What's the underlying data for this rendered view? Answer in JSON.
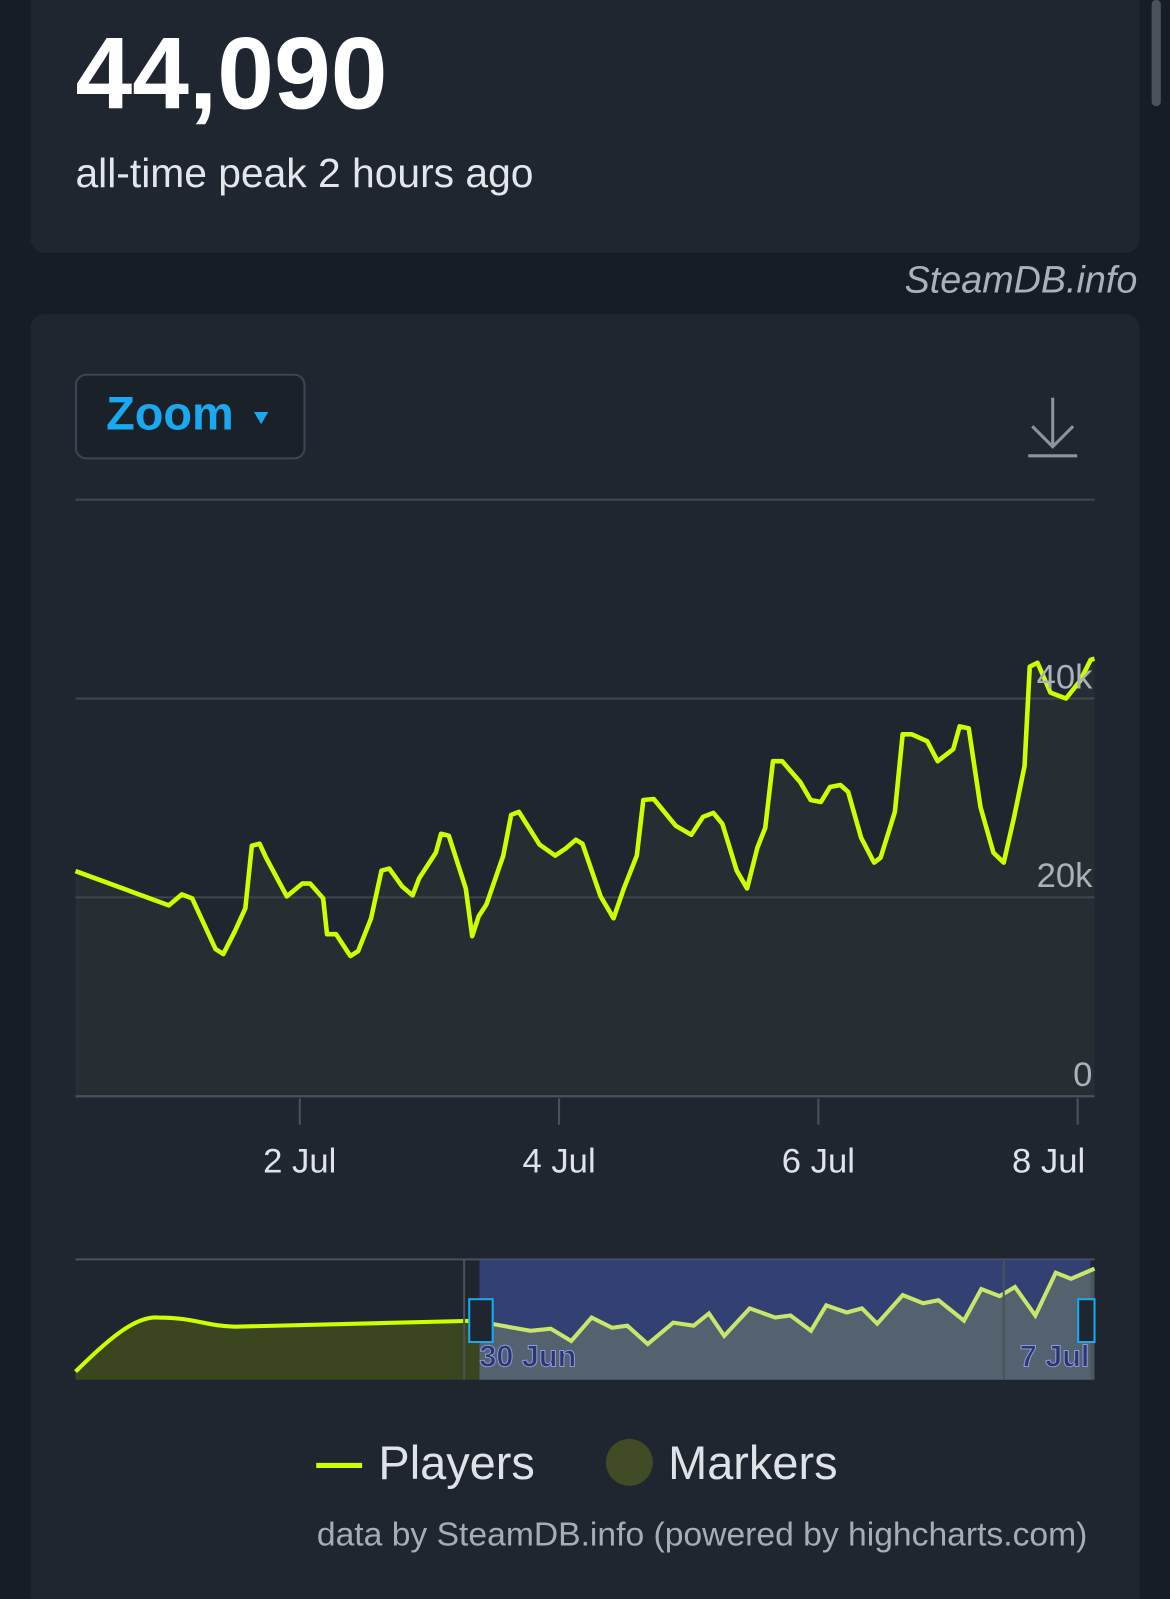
{
  "header": {
    "peak": "44,090",
    "subtitle": "all-time peak 2 hours ago"
  },
  "watermark": "SteamDB.info",
  "zoom_button": "Zoom",
  "navigator_labels": [
    "30 Jun",
    "7 Jul"
  ],
  "markers_legend": {
    "name": "Markers",
    "color": "#414b26"
  },
  "credits": "data by SteamDB.info (powered by highcharts.com)",
  "chart_data": {
    "type": "line",
    "x": [
      0.27,
      0.99,
      1.09,
      1.17,
      1.35,
      1.41,
      1.5,
      1.58,
      1.63,
      1.69,
      1.74,
      1.9,
      2.02,
      2.08,
      2.18,
      2.21,
      2.28,
      2.39,
      2.45,
      2.55,
      2.63,
      2.69,
      2.79,
      2.87,
      2.92,
      3.05,
      3.09,
      3.15,
      3.28,
      3.33,
      3.38,
      3.44,
      3.57,
      3.63,
      3.69,
      3.85,
      3.97,
      4.05,
      4.13,
      4.18,
      4.32,
      4.42,
      4.5,
      4.6,
      4.65,
      4.73,
      4.9,
      5.02,
      5.11,
      5.19,
      5.26,
      5.37,
      5.45,
      5.53,
      5.59,
      5.65,
      5.72,
      5.86,
      5.94,
      6.02,
      6.09,
      6.17,
      6.23,
      6.33,
      6.43,
      6.48,
      6.59,
      6.65,
      6.72,
      6.84,
      6.92,
      7.04,
      7.09,
      7.16,
      7.25,
      7.35,
      7.43,
      7.51,
      7.59,
      7.63,
      7.69,
      7.79,
      7.91,
      8.02,
      8.1,
      8.13
    ],
    "series": [
      {
        "name": "Players",
        "color": "#ccff00",
        "values": [
          22650,
          19200,
          20300,
          19900,
          14800,
          14300,
          16600,
          18900,
          25200,
          25400,
          24000,
          20100,
          21400,
          21400,
          19900,
          16300,
          16300,
          14100,
          14600,
          17900,
          22700,
          22900,
          21100,
          20200,
          21900,
          24500,
          26400,
          26200,
          20900,
          16100,
          18100,
          19300,
          24200,
          28300,
          28600,
          25300,
          24200,
          24900,
          25800,
          25400,
          20100,
          17900,
          20900,
          24200,
          29800,
          29900,
          27200,
          26300,
          28100,
          28500,
          27400,
          22700,
          20900,
          25000,
          27000,
          33700,
          33700,
          31600,
          29800,
          29600,
          31100,
          31300,
          30600,
          26000,
          23500,
          24000,
          28600,
          36400,
          36400,
          35700,
          33700,
          34900,
          37200,
          37000,
          29100,
          24500,
          23500,
          28100,
          33200,
          43200,
          43600,
          40600,
          40000,
          41800,
          43900,
          44000
        ]
      }
    ],
    "xlim": [
      0.27,
      8.13
    ],
    "xticks": [
      {
        "value": 2,
        "label": "2 Jul"
      },
      {
        "value": 4,
        "label": "4 Jul"
      },
      {
        "value": 6,
        "label": "6 Jul"
      },
      {
        "value": 8,
        "label": "8 Jul"
      }
    ],
    "ylim": [
      0,
      60000
    ],
    "yticks": [
      0,
      {
        "value": 20000,
        "label": "20k"
      },
      {
        "value": 40000,
        "label": "40k"
      }
    ],
    "grid": true
  }
}
